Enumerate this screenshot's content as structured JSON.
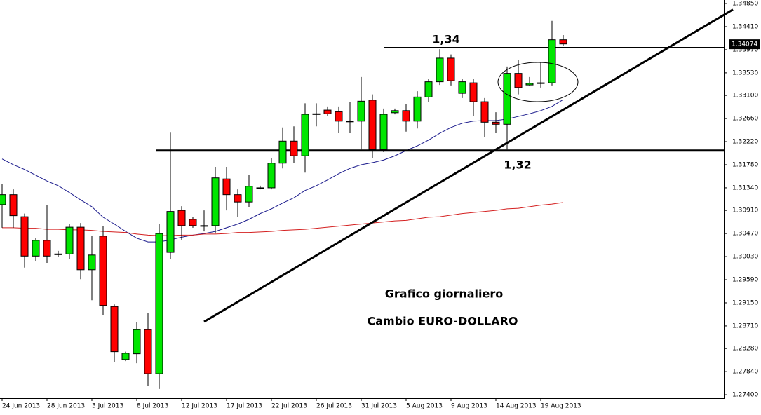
{
  "chart_data": {
    "type": "candlestick",
    "categories": [
      "24 Jun 2013",
      null,
      null,
      null,
      "28 Jun 2013",
      null,
      null,
      null,
      "3 Jul 2013",
      null,
      null,
      null,
      "8 Jul 2013",
      null,
      null,
      null,
      "12 Jul 2013",
      null,
      null,
      null,
      "17 Jul 2013",
      null,
      null,
      null,
      "22 Jul 2013",
      null,
      null,
      null,
      "26 Jul 2013",
      null,
      null,
      null,
      "31 Jul 2013",
      null,
      null,
      null,
      "5 Aug 2013",
      null,
      null,
      null,
      "9 Aug 2013",
      null,
      null,
      null,
      "14 Aug 2013",
      null,
      null,
      null,
      "19 Aug 2013",
      null,
      null
    ],
    "open": [
      1.3102,
      1.3121,
      1.3079,
      1.3004,
      1.3034,
      1.3008,
      1.3008,
      1.3059,
      1.2978,
      1.3042,
      1.2908,
      1.2807,
      1.2818,
      1.2864,
      1.278,
      1.3011,
      1.3091,
      1.3074,
      1.3062,
      1.3062,
      1.3151,
      1.3121,
      1.3107,
      1.3134,
      1.3134,
      1.3181,
      1.3223,
      1.3195,
      1.3275,
      1.3282,
      1.3279,
      1.3261,
      1.3261,
      1.3301,
      1.3207,
      1.3277,
      1.3281,
      1.3261,
      1.3307,
      1.3336,
      1.3381,
      1.3314,
      1.3334,
      1.3298,
      1.3259,
      1.3255,
      1.3352,
      1.333,
      1.3334,
      1.3334,
      1.3416
    ],
    "high": [
      1.3142,
      1.3131,
      1.3085,
      1.3038,
      1.3101,
      1.3014,
      1.3065,
      1.3067,
      1.3042,
      1.3061,
      1.2912,
      1.2822,
      1.2878,
      1.2896,
      1.3065,
      1.3239,
      1.3099,
      1.3078,
      1.3091,
      1.3174,
      1.3174,
      1.3131,
      1.3158,
      1.3138,
      1.3191,
      1.3249,
      1.3251,
      1.3295,
      1.3295,
      1.3289,
      1.3289,
      1.3298,
      1.3345,
      1.3312,
      1.3285,
      1.3285,
      1.3294,
      1.3318,
      1.3341,
      1.3398,
      1.3388,
      1.3341,
      1.3342,
      1.3305,
      1.3278,
      1.3365,
      1.3378,
      1.3345,
      1.3374,
      1.3452,
      1.3425
    ],
    "low": [
      1.3058,
      1.3058,
      1.2982,
      1.2995,
      1.2991,
      1.3003,
      1.2998,
      1.296,
      1.292,
      1.2892,
      1.2802,
      1.2804,
      1.28,
      1.2757,
      1.2751,
      1.2998,
      1.3034,
      1.3058,
      1.3051,
      1.3047,
      1.3091,
      1.3078,
      1.3097,
      1.3131,
      1.3131,
      1.3171,
      1.3182,
      1.3163,
      1.3251,
      1.3271,
      1.3238,
      1.3238,
      1.3207,
      1.319,
      1.3202,
      1.3274,
      1.3241,
      1.3247,
      1.3298,
      1.333,
      1.3329,
      1.3305,
      1.3271,
      1.3231,
      1.3238,
      1.3207,
      1.3312,
      1.3328,
      1.3325,
      1.3329,
      1.3404
    ],
    "close": [
      1.3121,
      1.3081,
      1.3004,
      1.3034,
      1.3004,
      1.3008,
      1.3059,
      1.2978,
      1.3006,
      1.291,
      1.2822,
      1.2819,
      1.2864,
      1.278,
      1.3047,
      1.3089,
      1.3062,
      1.3062,
      1.3062,
      1.3153,
      1.3121,
      1.3107,
      1.3137,
      1.3134,
      1.3181,
      1.3223,
      1.3195,
      1.3274,
      1.3275,
      1.3275,
      1.3261,
      1.3261,
      1.3299,
      1.3207,
      1.3274,
      1.3281,
      1.3261,
      1.3307,
      1.3336,
      1.3381,
      1.3338,
      1.3336,
      1.3298,
      1.3259,
      1.3255,
      1.3352,
      1.3325,
      1.3333,
      1.3334,
      1.3416,
      1.3408
    ],
    "up_color": "#00e600",
    "down_color": "#ff0000",
    "moving_averages": [
      {
        "color": "#1a1a8c",
        "values": [
          1.3189,
          1.3178,
          1.3169,
          1.3158,
          1.3147,
          1.3138,
          1.3125,
          1.3111,
          1.3098,
          1.3078,
          1.3065,
          1.3051,
          1.3038,
          1.3031,
          1.3031,
          1.3035,
          1.304,
          1.3044,
          1.3047,
          1.3051,
          1.3058,
          1.3065,
          1.3074,
          1.3085,
          1.3094,
          1.3105,
          1.3115,
          1.3129,
          1.3138,
          1.3149,
          1.3161,
          1.3171,
          1.3178,
          1.3182,
          1.3187,
          1.3195,
          1.3205,
          1.3214,
          1.3225,
          1.3238,
          1.3249,
          1.3257,
          1.3261,
          1.3262,
          1.3262,
          1.3265,
          1.327,
          1.3275,
          1.3281,
          1.3289,
          1.3302
        ]
      },
      {
        "color": "#d42020",
        "values": [
          1.3058,
          1.3058,
          1.3057,
          1.3057,
          1.3055,
          1.3055,
          1.3054,
          1.3054,
          1.3053,
          1.3051,
          1.305,
          1.3049,
          1.3046,
          1.3044,
          1.3043,
          1.3043,
          1.3044,
          1.3044,
          1.3046,
          1.3046,
          1.3047,
          1.3049,
          1.3049,
          1.305,
          1.3051,
          1.3053,
          1.3054,
          1.3055,
          1.3057,
          1.3059,
          1.3061,
          1.3063,
          1.3065,
          1.3067,
          1.3069,
          1.3071,
          1.3072,
          1.3075,
          1.3078,
          1.3079,
          1.3082,
          1.3085,
          1.3087,
          1.3089,
          1.3091,
          1.3094,
          1.3095,
          1.3098,
          1.3101,
          1.3103,
          1.3106
        ]
      }
    ],
    "levels": [
      {
        "value": 1.3401,
        "label": "1,34"
      },
      {
        "value": 1.3205,
        "label": "1,32"
      }
    ],
    "trendline": {
      "x": [
        18,
        44
      ],
      "values": [
        1.2879,
        1.3207
      ]
    },
    "last_price": 1.34074,
    "annotations": [
      "Cambio EURO-DOLLARO",
      "Grafico giornaliero"
    ],
    "ylim": [
      1.27334,
      1.34917
    ],
    "yticks": [
      {
        "value": 1.3485,
        "label": "1.34850"
      },
      {
        "value": 1.3441,
        "label": "1.34410"
      },
      {
        "value": 1.3397,
        "label": "1.33970"
      },
      {
        "value": 1.3353,
        "label": "1.33530"
      },
      {
        "value": 1.331,
        "label": "1.33100"
      },
      {
        "value": 1.3266,
        "label": "1.32660"
      },
      {
        "value": 1.3222,
        "label": "1.32220"
      },
      {
        "value": 1.3178,
        "label": "1.31780"
      },
      {
        "value": 1.3134,
        "label": "1.31340"
      },
      {
        "value": 1.3091,
        "label": "1.30910"
      },
      {
        "value": 1.3047,
        "label": "1.30470"
      },
      {
        "value": 1.3003,
        "label": "1.30030"
      },
      {
        "value": 1.2959,
        "label": "1.29590"
      },
      {
        "value": 1.2915,
        "label": "1.29150"
      },
      {
        "value": 1.2871,
        "label": "1.28710"
      },
      {
        "value": 1.2828,
        "label": "1.28280"
      },
      {
        "value": 1.2784,
        "label": "1.27840"
      },
      {
        "value": 1.274,
        "label": "1.27400"
      }
    ]
  }
}
